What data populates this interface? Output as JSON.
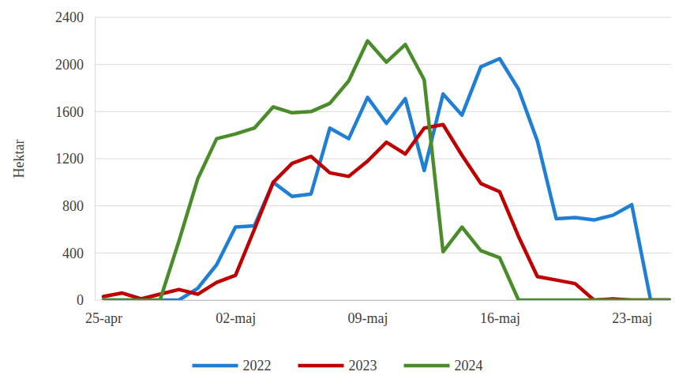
{
  "chart_data": {
    "type": "line",
    "y_label": "Hektar",
    "categories": [
      "25-apr",
      null,
      null,
      null,
      null,
      null,
      null,
      "02-maj",
      null,
      null,
      null,
      null,
      null,
      null,
      "09-maj",
      null,
      null,
      null,
      null,
      null,
      null,
      "16-maj",
      null,
      null,
      null,
      null,
      null,
      null,
      "23-maj",
      null,
      null
    ],
    "series": [
      {
        "name": "2022",
        "color": "#1f7fd4",
        "values": [
          0,
          0,
          0,
          0,
          0,
          100,
          300,
          620,
          630,
          1000,
          880,
          900,
          1460,
          1370,
          1720,
          1500,
          1710,
          1100,
          1750,
          1570,
          1980,
          2050,
          1790,
          1350,
          690,
          700,
          680,
          720,
          810,
          0,
          0
        ]
      },
      {
        "name": "2023",
        "color": "#c00000",
        "values": [
          30,
          60,
          10,
          50,
          90,
          50,
          150,
          210,
          600,
          1000,
          1160,
          1220,
          1080,
          1050,
          1180,
          1340,
          1240,
          1460,
          1490,
          1230,
          990,
          920,
          540,
          200,
          170,
          140,
          0,
          10,
          0,
          0,
          0
        ]
      },
      {
        "name": "2024",
        "color": "#4a8c2a",
        "values": [
          0,
          0,
          0,
          0,
          500,
          1030,
          1370,
          1410,
          1460,
          1640,
          1590,
          1600,
          1670,
          1860,
          2200,
          2020,
          2170,
          1870,
          410,
          620,
          420,
          360,
          0,
          0,
          0,
          0,
          0,
          0,
          0,
          0,
          0
        ]
      }
    ],
    "ylim": [
      0,
      2400
    ],
    "yticks": [
      0,
      400,
      800,
      1200,
      1600,
      2000,
      2400
    ],
    "grid": true,
    "legend": "bottom"
  }
}
